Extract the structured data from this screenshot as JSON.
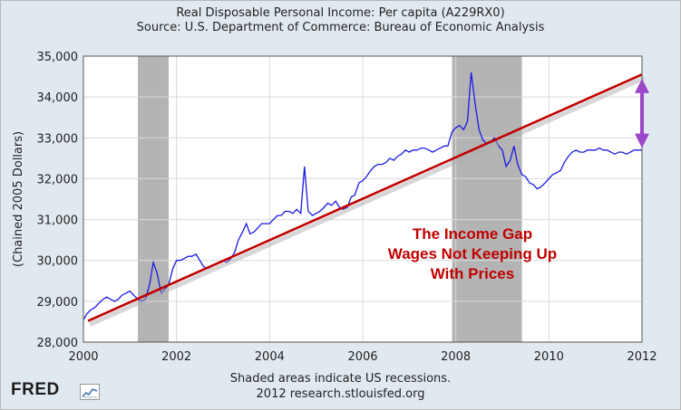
{
  "title": "Real Disposable Personal Income: Per capita (A229RX0)",
  "subtitle": "Source: U.S. Department of Commerce: Bureau of Economic Analysis",
  "footer_note": "Shaded areas indicate US recessions.",
  "footer_credit": "2012 research.stlouisfed.org",
  "logo_text": "FRED",
  "colors": {
    "series": "#1a1ae6",
    "trend": "#c00000",
    "recession": "#b4b4b4",
    "arrow": "#9b45c8",
    "background": "#e1e9f0"
  },
  "chart_data": {
    "type": "line",
    "title": "Real Disposable Personal Income: Per capita (A229RX0)",
    "subtitle": "Source: U.S. Department of Commerce: Bureau of Economic Analysis",
    "ylabel": "(Chained 2005 Dollars)",
    "xlim": [
      2000,
      2012
    ],
    "ylim": [
      28000,
      35000
    ],
    "xticks": [
      2000,
      2002,
      2004,
      2006,
      2008,
      2010,
      2012
    ],
    "yticks": [
      28000,
      29000,
      30000,
      31000,
      32000,
      33000,
      34000,
      35000
    ],
    "ytick_labels": [
      "28,000",
      "29,000",
      "30,000",
      "31,000",
      "32,000",
      "33,000",
      "34,000",
      "35,000"
    ],
    "grid": true,
    "recessions": [
      [
        2001.17,
        2001.83
      ],
      [
        2007.92,
        2009.42
      ]
    ],
    "series": [
      {
        "x": [
          2000.0,
          2000.08,
          2000.17,
          2000.25,
          2000.33,
          2000.42,
          2000.5,
          2000.58,
          2000.67,
          2000.75,
          2000.83,
          2000.92,
          2001.0,
          2001.08,
          2001.17,
          2001.25,
          2001.33,
          2001.42,
          2001.5,
          2001.58,
          2001.67,
          2001.75,
          2001.83,
          2001.92,
          2002.0,
          2002.08,
          2002.17,
          2002.25,
          2002.33,
          2002.42,
          2002.5,
          2002.58,
          2002.67,
          2002.75,
          2002.83,
          2002.92,
          2003.0,
          2003.08,
          2003.17,
          2003.25,
          2003.33,
          2003.42,
          2003.5,
          2003.58,
          2003.67,
          2003.75,
          2003.83,
          2003.92,
          2004.0,
          2004.08,
          2004.17,
          2004.25,
          2004.33,
          2004.42,
          2004.5,
          2004.58,
          2004.67,
          2004.75,
          2004.83,
          2004.92,
          2005.0,
          2005.08,
          2005.17,
          2005.25,
          2005.33,
          2005.42,
          2005.5,
          2005.58,
          2005.67,
          2005.75,
          2005.83,
          2005.92,
          2006.0,
          2006.08,
          2006.17,
          2006.25,
          2006.33,
          2006.42,
          2006.5,
          2006.58,
          2006.67,
          2006.75,
          2006.83,
          2006.92,
          2007.0,
          2007.08,
          2007.17,
          2007.25,
          2007.33,
          2007.42,
          2007.5,
          2007.58,
          2007.67,
          2007.75,
          2007.83,
          2007.92,
          2008.0,
          2008.08,
          2008.17,
          2008.25,
          2008.33,
          2008.42,
          2008.5,
          2008.58,
          2008.67,
          2008.75,
          2008.83,
          2008.92,
          2009.0,
          2009.08,
          2009.17,
          2009.25,
          2009.33,
          2009.42,
          2009.5,
          2009.58,
          2009.67,
          2009.75,
          2009.83,
          2009.92,
          2010.0,
          2010.08,
          2010.17,
          2010.25,
          2010.33,
          2010.42,
          2010.5,
          2010.58,
          2010.67,
          2010.75,
          2010.83,
          2010.92,
          2011.0,
          2011.08,
          2011.17,
          2011.25,
          2011.33,
          2011.42,
          2011.5,
          2011.58,
          2011.67,
          2011.75,
          2011.83,
          2011.92,
          2012.0
        ],
        "y": [
          28550,
          28700,
          28800,
          28850,
          28950,
          29050,
          29100,
          29050,
          29000,
          29050,
          29150,
          29200,
          29250,
          29150,
          29050,
          29000,
          29050,
          29400,
          29950,
          29700,
          29200,
          29300,
          29400,
          29800,
          30000,
          30000,
          30050,
          30100,
          30100,
          30150,
          30000,
          29850,
          29800,
          29850,
          29900,
          29950,
          30000,
          29950,
          30050,
          30200,
          30500,
          30700,
          30900,
          30650,
          30700,
          30800,
          30900,
          30900,
          30900,
          31000,
          31100,
          31100,
          31200,
          31200,
          31150,
          31250,
          31150,
          32300,
          31200,
          31100,
          31150,
          31200,
          31300,
          31400,
          31350,
          31450,
          31300,
          31250,
          31300,
          31550,
          31600,
          31900,
          31950,
          32050,
          32200,
          32300,
          32350,
          32350,
          32400,
          32500,
          32450,
          32550,
          32600,
          32700,
          32650,
          32700,
          32700,
          32750,
          32750,
          32700,
          32650,
          32700,
          32750,
          32800,
          32800,
          33150,
          33250,
          33300,
          33200,
          33400,
          34600,
          33800,
          33200,
          32950,
          32850,
          32900,
          33000,
          32800,
          32700,
          32300,
          32450,
          32800,
          32350,
          32100,
          32050,
          31900,
          31850,
          31750,
          31800,
          31900,
          32000,
          32100,
          32150,
          32200,
          32400,
          32550,
          32650,
          32700,
          32650,
          32650,
          32700,
          32700,
          32700,
          32750,
          32700,
          32700,
          32650,
          32600,
          32650,
          32650,
          32600,
          32650,
          32700,
          32700,
          32700
        ]
      }
    ],
    "annotations": {
      "trend_line": {
        "from": [
          2000.1,
          28520
        ],
        "to": [
          2012.0,
          34550
        ]
      },
      "gap_arrow": {
        "x": 2012.0,
        "y_top": 34450,
        "y_bottom": 32750
      },
      "text_lines": [
        "The Income Gap",
        "Wages Not Keeping Up",
        "With Prices"
      ]
    }
  }
}
